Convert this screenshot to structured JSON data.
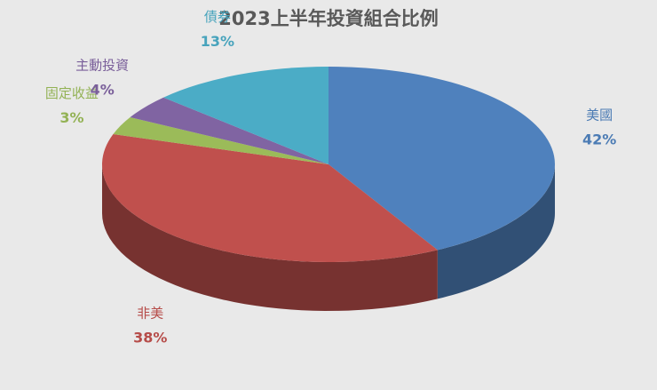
{
  "chart_data": {
    "type": "pie",
    "title": "2023上半年投資組合比例",
    "categories": [
      "美國",
      "非美",
      "固定收益",
      "主動投資",
      "債券"
    ],
    "values": [
      42,
      38,
      3,
      4,
      13
    ],
    "value_labels": [
      "42%",
      "38%",
      "3%",
      "4%",
      "13%"
    ],
    "colors": [
      "#4f81bd",
      "#c0504d",
      "#9bbb59",
      "#8064a2",
      "#4bacc6"
    ]
  }
}
